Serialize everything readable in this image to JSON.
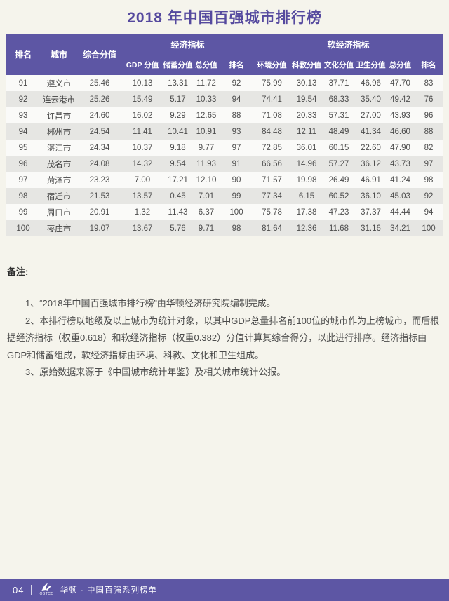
{
  "page": {
    "title": "2018 年中国百强城市排行榜",
    "accent_purple": "#5d56a4",
    "title_purple": "#55499e",
    "background": "#f5f4ec",
    "row_stripe_light": "#fafaf8",
    "row_stripe_gray": "#e6e6e3"
  },
  "table": {
    "group_headers": {
      "rank": "排名",
      "city": "城市",
      "composite": "综合分值",
      "economic": "经济指标",
      "soft": "软经济指标"
    },
    "sub_headers": {
      "economic": [
        "GDP 分值",
        "储蓄分值",
        "总分值",
        "排名"
      ],
      "soft": [
        "环境分值",
        "科教分值",
        "文化分值",
        "卫生分值",
        "总分值",
        "排名"
      ]
    },
    "rows": [
      [
        "91",
        "遵义市",
        "25.46",
        "10.13",
        "13.31",
        "11.72",
        "92",
        "75.99",
        "30.13",
        "37.71",
        "46.96",
        "47.70",
        "83"
      ],
      [
        "92",
        "连云港市",
        "25.26",
        "15.49",
        "5.17",
        "10.33",
        "94",
        "74.41",
        "19.54",
        "68.33",
        "35.40",
        "49.42",
        "76"
      ],
      [
        "93",
        "许昌市",
        "24.60",
        "16.02",
        "9.29",
        "12.65",
        "88",
        "71.08",
        "20.33",
        "57.31",
        "27.00",
        "43.93",
        "96"
      ],
      [
        "94",
        "郴州市",
        "24.54",
        "11.41",
        "10.41",
        "10.91",
        "93",
        "84.48",
        "12.11",
        "48.49",
        "41.34",
        "46.60",
        "88"
      ],
      [
        "95",
        "湛江市",
        "24.34",
        "10.37",
        "9.18",
        "9.77",
        "97",
        "72.85",
        "36.01",
        "60.15",
        "22.60",
        "47.90",
        "82"
      ],
      [
        "96",
        "茂名市",
        "24.08",
        "14.32",
        "9.54",
        "11.93",
        "91",
        "66.56",
        "14.96",
        "57.27",
        "36.12",
        "43.73",
        "97"
      ],
      [
        "97",
        "菏泽市",
        "23.23",
        "7.00",
        "17.21",
        "12.10",
        "90",
        "71.57",
        "19.98",
        "26.49",
        "46.91",
        "41.24",
        "98"
      ],
      [
        "98",
        "宿迁市",
        "21.53",
        "13.57",
        "0.45",
        "7.01",
        "99",
        "77.34",
        "6.15",
        "60.52",
        "36.10",
        "45.03",
        "92"
      ],
      [
        "99",
        "周口市",
        "20.91",
        "1.32",
        "11.43",
        "6.37",
        "100",
        "75.78",
        "17.38",
        "47.23",
        "37.37",
        "44.44",
        "94"
      ],
      [
        "100",
        "枣庄市",
        "19.07",
        "13.67",
        "5.76",
        "9.71",
        "98",
        "81.64",
        "12.36",
        "11.68",
        "31.16",
        "34.21",
        "100"
      ]
    ]
  },
  "notes": {
    "label": "备注:",
    "items": [
      "1、“2018年中国百强城市排行榜”由华顿经济研究院编制完成。",
      "2、本排行榜以地级及以上城市为统计对象，以其中GDP总量排名前100位的城市作为上榜城市，而后根据经济指标（权重0.618）和软经济指标（权重0.382）分值计算其综合得分，以此进行排序。经济指标由GDP和储蓄组成，软经济指标由环境、科教、文化和卫生组成。",
      "3、原始数据来源于《中国城市统计年鉴》及相关城市统计公报。"
    ]
  },
  "footer": {
    "page_number": "04",
    "logo_text": "OBTCO",
    "brand_text": "华顿 · 中国百强系列榜单"
  }
}
